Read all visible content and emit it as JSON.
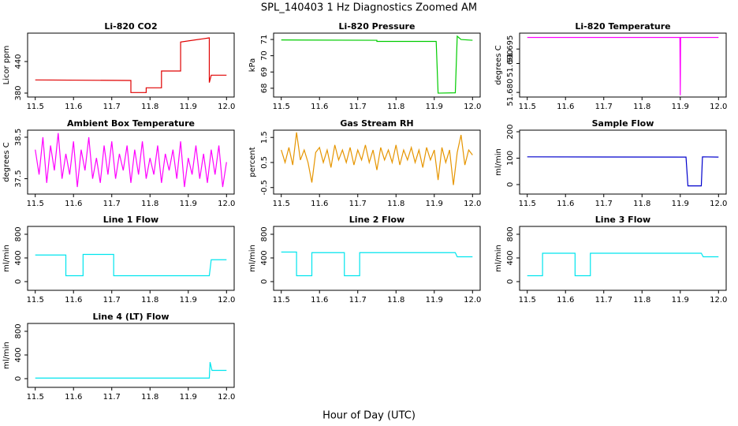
{
  "title": "SPL_140403 1 Hz Diagnostics Zoomed AM",
  "x_label": "Hour of Day (UTC)",
  "chart_data": [
    {
      "type": "line",
      "title": "Li-820 CO2",
      "y_label": "Licor ppm",
      "color": "#e00000",
      "x": [
        11.5,
        11.75,
        11.75,
        11.79,
        11.79,
        11.83,
        11.83,
        11.88,
        11.88,
        11.955,
        11.955,
        11.96,
        11.96,
        12.0
      ],
      "values": [
        405,
        404,
        381,
        381,
        390,
        390,
        422,
        422,
        477,
        485,
        400,
        414,
        414,
        414
      ],
      "xlim": [
        11.48,
        12.02
      ],
      "xticks": [
        11.5,
        11.6,
        11.7,
        11.8,
        11.9,
        {
          "value": 12,
          "label": "12.0"
        }
      ],
      "ylim": [
        372.5,
        494
      ],
      "yticks": [
        380,
        440
      ]
    },
    {
      "type": "line",
      "title": "Li-820 Pressure",
      "y_label": "kPa",
      "color": "#00cc00",
      "x": [
        11.5,
        11.75,
        11.75,
        11.905,
        11.91,
        11.955,
        11.96,
        11.97,
        12.0
      ],
      "values": [
        70.97,
        70.95,
        70.88,
        70.88,
        67.7,
        67.72,
        71.2,
        71.0,
        70.95
      ],
      "xlim": [
        11.48,
        12.02
      ],
      "xticks": [
        11.5,
        11.6,
        11.7,
        11.8,
        11.9,
        {
          "value": 12,
          "label": "12.0"
        }
      ],
      "ylim": [
        67.46,
        71.39
      ],
      "yticks": [
        68,
        69,
        70,
        71
      ]
    },
    {
      "type": "line",
      "title": "Li-820 Temperature",
      "y_label": "degrees C",
      "color": "#ff00ff",
      "x": [
        11.5,
        11.899,
        11.9,
        11.901,
        12.0
      ],
      "values": [
        51.699,
        51.699,
        51.679,
        51.699,
        51.699
      ],
      "xlim": [
        11.48,
        12.02
      ],
      "xticks": [
        11.5,
        11.6,
        11.7,
        11.8,
        11.9,
        {
          "value": 12,
          "label": "12.0"
        }
      ],
      "ylim": [
        51.6784,
        51.7005
      ],
      "yticks": [
        {
          "value": 51.68,
          "label": "51.680"
        },
        {
          "value": 51.69,
          "label": "51.690"
        },
        51.695
      ]
    },
    {
      "type": "line",
      "title": "Ambient Box Temperature",
      "y_label": "degrees C",
      "color": "#ff00ff",
      "x": [
        11.5,
        11.51,
        11.52,
        11.53,
        11.54,
        11.55,
        11.56,
        11.57,
        11.58,
        11.59,
        11.6,
        11.61,
        11.62,
        11.63,
        11.64,
        11.65,
        11.66,
        11.67,
        11.68,
        11.69,
        11.7,
        11.71,
        11.72,
        11.73,
        11.74,
        11.75,
        11.76,
        11.77,
        11.78,
        11.79,
        11.8,
        11.81,
        11.82,
        11.83,
        11.84,
        11.85,
        11.86,
        11.87,
        11.88,
        11.89,
        11.9,
        11.91,
        11.92,
        11.93,
        11.94,
        11.95,
        11.96,
        11.97,
        11.98,
        11.99,
        12.0
      ],
      "values": [
        38.2,
        37.6,
        38.5,
        37.4,
        38.3,
        37.7,
        38.6,
        37.5,
        38.1,
        37.6,
        38.4,
        37.3,
        38.2,
        37.7,
        38.5,
        37.5,
        38.0,
        37.4,
        38.3,
        37.6,
        38.4,
        37.5,
        38.1,
        37.7,
        38.3,
        37.4,
        38.2,
        37.6,
        38.4,
        37.5,
        38.0,
        37.6,
        38.3,
        37.4,
        38.1,
        37.7,
        38.2,
        37.5,
        38.4,
        37.3,
        38.0,
        37.6,
        38.3,
        37.5,
        38.1,
        37.4,
        38.2,
        37.6,
        38.3,
        37.3,
        37.9
      ],
      "xlim": [
        11.48,
        12.02
      ],
      "xticks": [
        11.5,
        11.6,
        11.7,
        11.8,
        11.9,
        {
          "value": 12,
          "label": "12.0"
        }
      ],
      "ylim": [
        37.13,
        38.67
      ],
      "yticks": [
        37.5,
        38.5
      ]
    },
    {
      "type": "line",
      "title": "Gas Stream RH",
      "y_label": "percent",
      "color": "#e69500",
      "x": [
        11.5,
        11.51,
        11.52,
        11.53,
        11.54,
        11.55,
        11.56,
        11.57,
        11.58,
        11.59,
        11.6,
        11.61,
        11.62,
        11.63,
        11.64,
        11.65,
        11.66,
        11.67,
        11.68,
        11.69,
        11.7,
        11.71,
        11.72,
        11.73,
        11.74,
        11.75,
        11.76,
        11.77,
        11.78,
        11.79,
        11.8,
        11.81,
        11.82,
        11.83,
        11.84,
        11.85,
        11.86,
        11.87,
        11.88,
        11.89,
        11.9,
        11.91,
        11.92,
        11.93,
        11.94,
        11.95,
        11.96,
        11.97,
        11.98,
        11.99,
        12.0
      ],
      "values": [
        1.0,
        0.5,
        1.1,
        0.4,
        1.7,
        0.6,
        1.0,
        0.5,
        -0.3,
        0.9,
        1.1,
        0.5,
        1.0,
        0.3,
        1.2,
        0.6,
        1.0,
        0.5,
        1.1,
        0.4,
        1.0,
        0.6,
        1.2,
        0.5,
        1.0,
        0.2,
        1.1,
        0.6,
        1.0,
        0.5,
        1.2,
        0.4,
        1.0,
        0.6,
        1.1,
        0.5,
        1.0,
        0.3,
        1.1,
        0.6,
        1.0,
        -0.2,
        1.1,
        0.5,
        1.0,
        -0.4,
        0.9,
        1.6,
        0.4,
        1.0,
        0.8
      ],
      "xlim": [
        11.48,
        12.02
      ],
      "xticks": [
        11.5,
        11.6,
        11.7,
        11.8,
        11.9,
        {
          "value": 12,
          "label": "12.0"
        }
      ],
      "ylim": [
        -0.76,
        1.79
      ],
      "yticks": [
        -0.5,
        0.5,
        1.5
      ]
    },
    {
      "type": "line",
      "title": "Sample Flow",
      "y_label": "ml/min",
      "color": "#0000cc",
      "x": [
        11.5,
        11.915,
        11.92,
        11.955,
        11.958,
        12.0
      ],
      "values": [
        105,
        104,
        -5,
        -5,
        105,
        104
      ],
      "xlim": [
        11.48,
        12.02
      ],
      "xticks": [
        11.5,
        11.6,
        11.7,
        11.8,
        11.9,
        {
          "value": 12,
          "label": "12.0"
        }
      ],
      "ylim": [
        -36,
        206
      ],
      "yticks": [
        0,
        100,
        200
      ]
    },
    {
      "type": "line",
      "title": "Line 1 Flow",
      "y_label": "ml/min",
      "color": "#00e5ee",
      "x": [
        11.5,
        11.58,
        11.58,
        11.625,
        11.625,
        11.705,
        11.705,
        11.955,
        11.96,
        12.0
      ],
      "values": [
        450,
        450,
        100,
        100,
        460,
        460,
        100,
        100,
        370,
        370
      ],
      "xlim": [
        11.48,
        12.02
      ],
      "xticks": [
        11.5,
        11.6,
        11.7,
        11.8,
        11.9,
        {
          "value": 12,
          "label": "12.0"
        }
      ],
      "ylim": [
        -147,
        933
      ],
      "yticks": [
        0,
        400,
        800
      ]
    },
    {
      "type": "line",
      "title": "Line 2 Flow",
      "y_label": "ml/min",
      "color": "#00e5ee",
      "x": [
        11.5,
        11.54,
        11.54,
        11.58,
        11.58,
        11.665,
        11.665,
        11.705,
        11.705,
        11.955,
        11.96,
        12.0
      ],
      "values": [
        500,
        500,
        100,
        100,
        490,
        490,
        100,
        100,
        490,
        490,
        420,
        420
      ],
      "xlim": [
        11.48,
        12.02
      ],
      "xticks": [
        11.5,
        11.6,
        11.7,
        11.8,
        11.9,
        {
          "value": 12,
          "label": "12.0"
        }
      ],
      "ylim": [
        -147,
        933
      ],
      "yticks": [
        0,
        400,
        800
      ]
    },
    {
      "type": "line",
      "title": "Line 3 Flow",
      "y_label": "ml/min",
      "color": "#00e5ee",
      "x": [
        11.5,
        11.54,
        11.54,
        11.625,
        11.625,
        11.665,
        11.665,
        11.955,
        11.96,
        12.0
      ],
      "values": [
        100,
        100,
        480,
        480,
        100,
        100,
        480,
        480,
        420,
        420
      ],
      "xlim": [
        11.48,
        12.02
      ],
      "xticks": [
        11.5,
        11.6,
        11.7,
        11.8,
        11.9,
        {
          "value": 12,
          "label": "12.0"
        }
      ],
      "ylim": [
        -147,
        933
      ],
      "yticks": [
        0,
        400,
        800
      ]
    },
    {
      "type": "line",
      "title": "Line 4 (LT) Flow",
      "y_label": "ml/min",
      "color": "#00e5ee",
      "x": [
        11.5,
        11.955,
        11.957,
        11.962,
        12.0
      ],
      "values": [
        10,
        10,
        280,
        140,
        140
      ],
      "xlim": [
        11.48,
        12.02
      ],
      "xticks": [
        11.5,
        11.6,
        11.7,
        11.8,
        11.9,
        {
          "value": 12,
          "label": "12.0"
        }
      ],
      "ylim": [
        -147,
        933
      ],
      "yticks": [
        0,
        400,
        800
      ]
    }
  ]
}
